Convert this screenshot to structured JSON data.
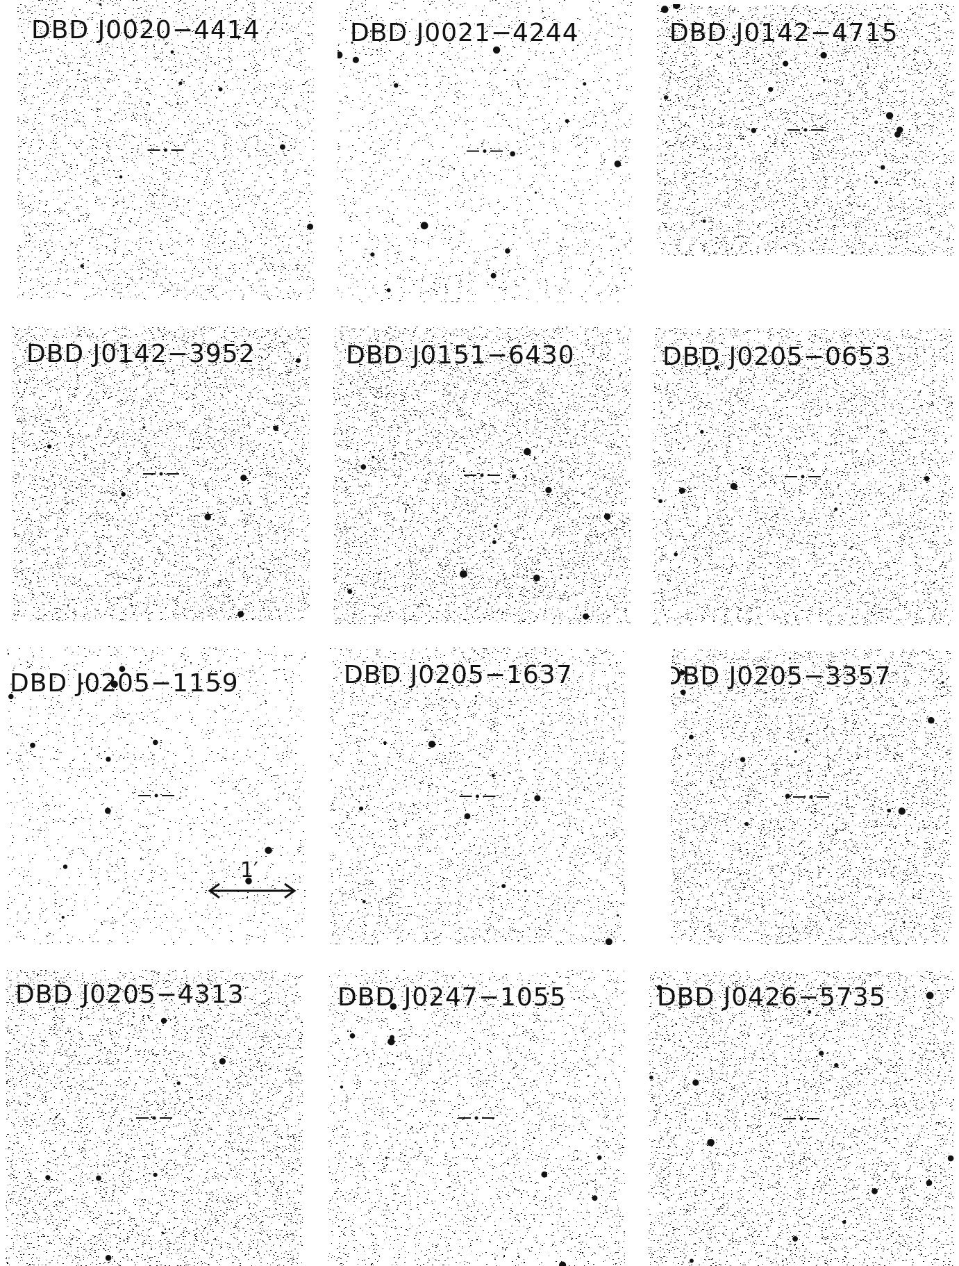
{
  "panels": [
    {
      "id": "p1",
      "label": "DBD J0020−4414",
      "density": 0.38
    },
    {
      "id": "p2",
      "label": "DBD J0021−4244",
      "density": 0.22
    },
    {
      "id": "p3",
      "label": "DBD J0142−4715",
      "density": 0.62
    },
    {
      "id": "p4",
      "label": "DBD J0142−3952",
      "density": 0.62
    },
    {
      "id": "p5",
      "label": "DBD J0151−6430",
      "density": 0.66
    },
    {
      "id": "p6",
      "label": "DBD J0205−0653",
      "density": 0.6
    },
    {
      "id": "p7",
      "label": "DBD J0205−1159",
      "density": 0.2
    },
    {
      "id": "p8",
      "label": "DBD J0205−1637",
      "density": 0.4
    },
    {
      "id": "p9",
      "label": "DBD J0205−3357",
      "density": 0.62
    },
    {
      "id": "p10",
      "label": "DBD J0205−4313",
      "density": 0.58
    },
    {
      "id": "p11",
      "label": "DBD J0247−1055",
      "density": 0.36
    },
    {
      "id": "p12",
      "label": "DBD J0426−5735",
      "density": 0.58
    }
  ],
  "scale_bar": {
    "label": "1′"
  },
  "colors": {
    "ink": "#111111",
    "background": "#ffffff"
  }
}
